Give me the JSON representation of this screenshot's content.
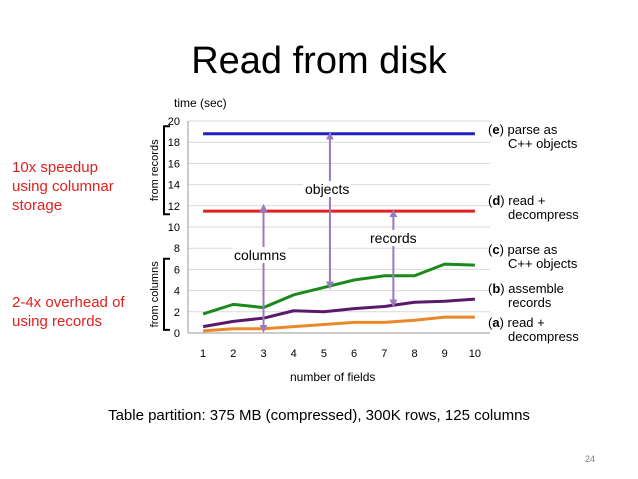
{
  "title": "Read from disk",
  "notes": {
    "speedup": "10x speedup using columnar storage",
    "overhead": "2-4x overhead of using records"
  },
  "brackets": {
    "upper": "from records",
    "lower": "from columns"
  },
  "annotations": {
    "objects": "objects",
    "records": "records",
    "columns": "columns"
  },
  "series_labels": [
    {
      "code": "e",
      "prefix": "(",
      "suffix": ")",
      "line1": " parse as",
      "line2": "C++ objects"
    },
    {
      "code": "d",
      "prefix": "(",
      "suffix": ")",
      "line1": " read +",
      "line2": "decompress"
    },
    {
      "code": "c",
      "prefix": "(",
      "suffix": ")",
      "line1": " parse as",
      "line2": "C++ objects"
    },
    {
      "code": "b",
      "prefix": "(",
      "suffix": ")",
      "line1": " assemble",
      "line2": "records"
    },
    {
      "code": "a",
      "prefix": "(",
      "suffix": ")",
      "line1": " read +",
      "line2": "decompress"
    }
  ],
  "footer": "Table partition: 375 MB (compressed), 300K rows, 125 columns",
  "page_number": "24",
  "colors": {
    "e": "#2020c0",
    "d": "#e02020",
    "c": "#1a8a1a",
    "b": "#5a1a6a",
    "a": "#e88a2a",
    "arrow": "#9a7ac0",
    "note": "#e02020",
    "grid": "#d9d9d9"
  },
  "chart_data": {
    "type": "line",
    "ylabel": "time (sec)",
    "xlabel": "number of fields",
    "x": [
      1,
      2,
      3,
      4,
      5,
      6,
      7,
      8,
      9,
      10
    ],
    "xlim": [
      1,
      10
    ],
    "ylim": [
      0,
      20
    ],
    "yticks": [
      0,
      2,
      4,
      6,
      8,
      10,
      12,
      14,
      16,
      18,
      20
    ],
    "grid": "horizontal",
    "series": [
      {
        "key": "e",
        "values": [
          18.8,
          18.8,
          18.8,
          18.8,
          18.8,
          18.8,
          18.8,
          18.8,
          18.8,
          18.8
        ]
      },
      {
        "key": "d",
        "values": [
          11.5,
          11.5,
          11.5,
          11.5,
          11.5,
          11.5,
          11.5,
          11.5,
          11.5,
          11.5
        ]
      },
      {
        "key": "c",
        "values": [
          1.8,
          2.7,
          2.4,
          3.6,
          4.3,
          5.0,
          5.4,
          5.4,
          6.5,
          6.4
        ]
      },
      {
        "key": "b",
        "values": [
          0.6,
          1.1,
          1.4,
          2.1,
          2.0,
          2.3,
          2.5,
          2.9,
          3.0,
          3.2
        ]
      },
      {
        "key": "a",
        "values": [
          0.2,
          0.4,
          0.4,
          0.6,
          0.8,
          1.0,
          1.0,
          1.2,
          1.5,
          1.5
        ]
      }
    ],
    "arrows": [
      {
        "label": "columns",
        "x": 3,
        "from": 12,
        "to": 0.2
      },
      {
        "label": "objects",
        "x": 5.2,
        "from": 18.8,
        "to": 4.3
      },
      {
        "label": "records",
        "x": 7.3,
        "from": 11.5,
        "to": 2.6
      }
    ]
  }
}
